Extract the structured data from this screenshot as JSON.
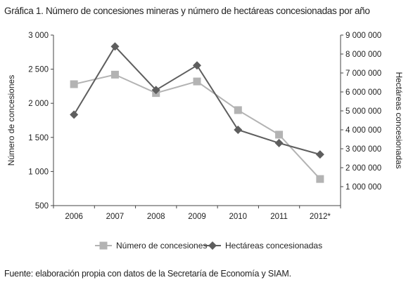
{
  "chart_data": {
    "type": "line",
    "title": "Gráfica 1. Número de concesiones mineras y número de hectáreas concesionadas por año",
    "categories": [
      "2006",
      "2007",
      "2008",
      "2009",
      "2010",
      "2011",
      "2012*"
    ],
    "y_left": {
      "label": "Número de concesiones",
      "ylim": [
        500,
        3000
      ],
      "ticks": [
        500,
        1000,
        1500,
        2000,
        2500,
        3000
      ],
      "tick_labels": [
        "500",
        "1 000",
        "1 500",
        "2 000",
        "2 500",
        "3 000"
      ]
    },
    "y_right": {
      "label": "Hectáreas concesionadas",
      "ylim": [
        0,
        9000000
      ],
      "ticks": [
        1000000,
        2000000,
        3000000,
        4000000,
        5000000,
        6000000,
        7000000,
        8000000,
        9000000
      ],
      "tick_labels": [
        "1 000 000",
        "2 000 000",
        "3 000 000",
        "4 000 000",
        "5 000 000",
        "6 000 000",
        "7 000 000",
        "8 000 000",
        "9 000 000"
      ]
    },
    "series": [
      {
        "name": "Número de concesiones",
        "axis": "left",
        "marker": "square",
        "color": "#b3b3b3",
        "values": [
          2280,
          2420,
          2150,
          2320,
          1900,
          1540,
          890
        ]
      },
      {
        "name": "Hectáreas concesionadas",
        "axis": "right",
        "marker": "diamond",
        "color": "#5e5e5e",
        "values": [
          4800000,
          8400000,
          6100000,
          7400000,
          4000000,
          3300000,
          2700000
        ]
      }
    ],
    "legend_position": "bottom",
    "grid": false
  },
  "source_note": "Fuente: elaboración propia con datos de la Secretaría de Economía y SIAM."
}
